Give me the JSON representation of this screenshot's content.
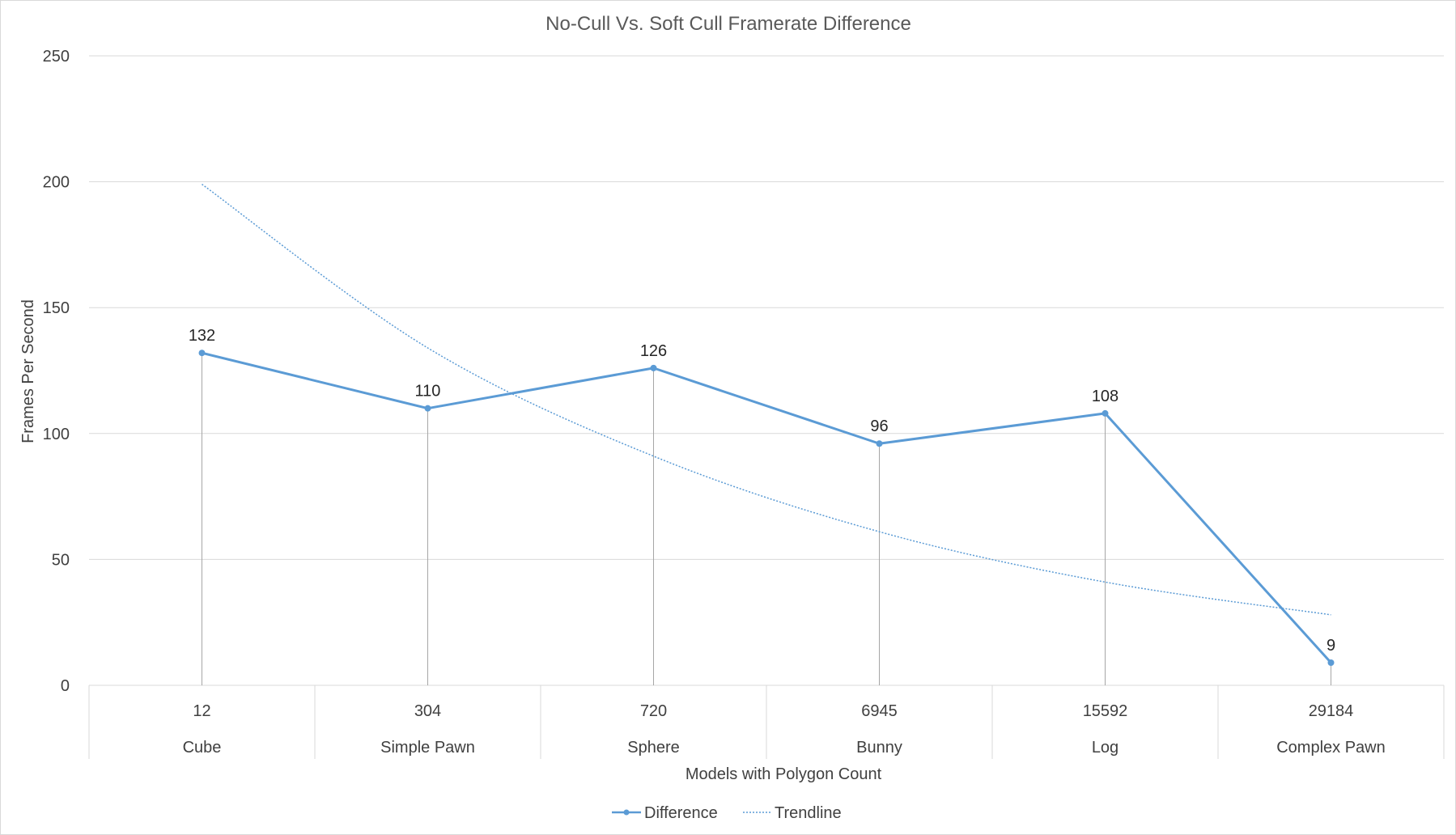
{
  "colors": {
    "series": "#5b9bd5",
    "trend": "#5b9bd5"
  },
  "chart_data": {
    "type": "line",
    "title": "No-Cull Vs. Soft Cull Framerate Difference",
    "xlabel": "Models with Polygon Count",
    "ylabel": "Frames Per Second",
    "ylim": [
      0,
      250
    ],
    "yticks": [
      "0",
      "50",
      "100",
      "150",
      "200",
      "250"
    ],
    "categories": [
      {
        "count": "12",
        "model": "Cube"
      },
      {
        "count": "304",
        "model": "Simple Pawn"
      },
      {
        "count": "720",
        "model": "Sphere"
      },
      {
        "count": "6945",
        "model": "Bunny"
      },
      {
        "count": "15592",
        "model": "Log"
      },
      {
        "count": "29184",
        "model": "Complex Pawn"
      }
    ],
    "series": [
      {
        "name": "Difference",
        "values": [
          132,
          110,
          126,
          96,
          108,
          9
        ]
      }
    ],
    "trendline": {
      "name": "Trendline",
      "type": "exponential",
      "values": [
        199,
        134,
        91,
        61,
        41,
        28
      ]
    },
    "grid": true,
    "drop_lines": true,
    "data_labels": true,
    "legend": "bottom"
  }
}
